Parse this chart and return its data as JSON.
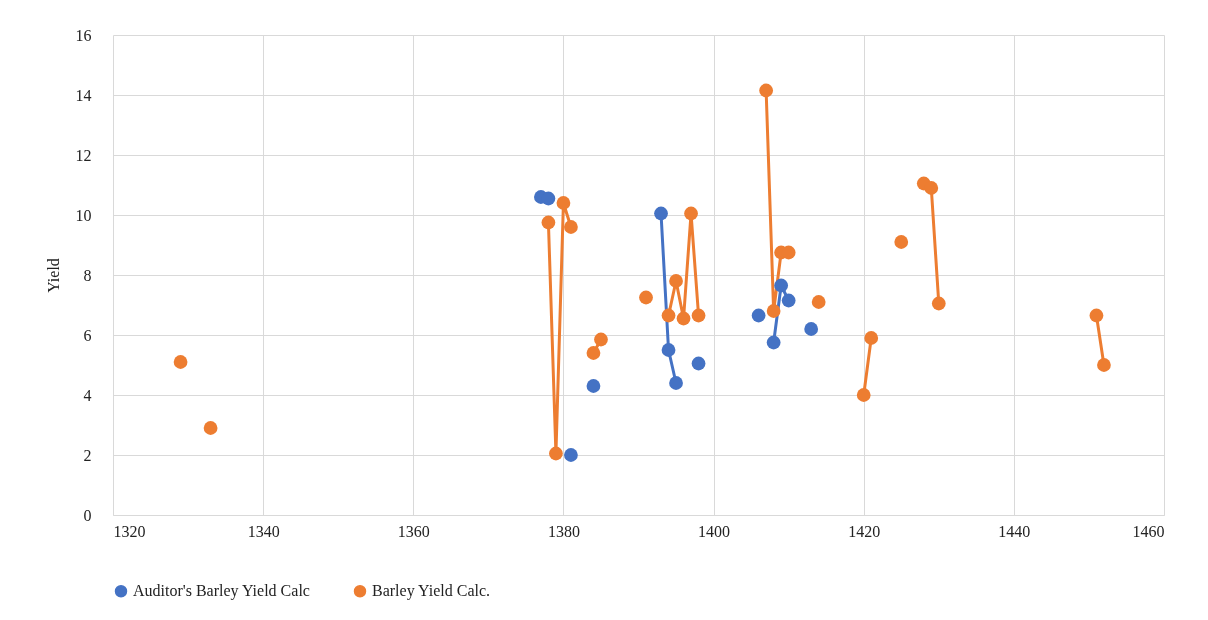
{
  "chart_data": {
    "type": "line",
    "ylabel": "Yield",
    "xlim": [
      1320,
      1460
    ],
    "xticks": [
      1320,
      1340,
      1360,
      1380,
      1400,
      1420,
      1440,
      1460
    ],
    "ylim": [
      0,
      16
    ],
    "yticks": [
      0,
      2,
      4,
      6,
      8,
      10,
      12,
      14,
      16
    ],
    "grid": true,
    "legend": "bottom",
    "marker": "circle",
    "line_style": "solid",
    "series": [
      {
        "name": "Auditor's Barley Yield Calc",
        "color": "#4472c4",
        "x": [
          1377,
          1378,
          1379,
          1381,
          1382,
          1384,
          1385,
          1393,
          1394,
          1395,
          1396,
          1398,
          1399,
          1406,
          1407,
          1408,
          1409,
          1410,
          1411,
          1413
        ],
        "values": [
          10.6,
          10.55,
          null,
          2.0,
          null,
          4.3,
          null,
          10.05,
          5.5,
          4.4,
          null,
          5.05,
          null,
          6.65,
          null,
          5.75,
          7.65,
          7.15,
          null,
          6.2
        ]
      },
      {
        "name": "Barley Yield Calc.",
        "color": "#ed7d31",
        "x": [
          1329,
          1330,
          1333,
          1334,
          1378,
          1379,
          1380,
          1381,
          1382,
          1384,
          1385,
          1386,
          1391,
          1392,
          1394,
          1395,
          1396,
          1397,
          1398,
          1399,
          1407,
          1408,
          1409,
          1410,
          1411,
          1414,
          1415,
          1420,
          1421,
          1422,
          1425,
          1426,
          1428,
          1429,
          1430,
          1431,
          1451,
          1452
        ],
        "values": [
          5.1,
          null,
          2.9,
          null,
          9.75,
          2.05,
          10.4,
          9.6,
          null,
          5.4,
          5.85,
          null,
          7.25,
          null,
          6.65,
          7.8,
          6.55,
          10.05,
          6.65,
          null,
          14.15,
          6.8,
          8.75,
          8.75,
          null,
          7.1,
          null,
          4.0,
          5.9,
          null,
          9.1,
          null,
          11.05,
          10.9,
          7.05,
          null,
          6.65,
          5.0
        ]
      }
    ]
  }
}
